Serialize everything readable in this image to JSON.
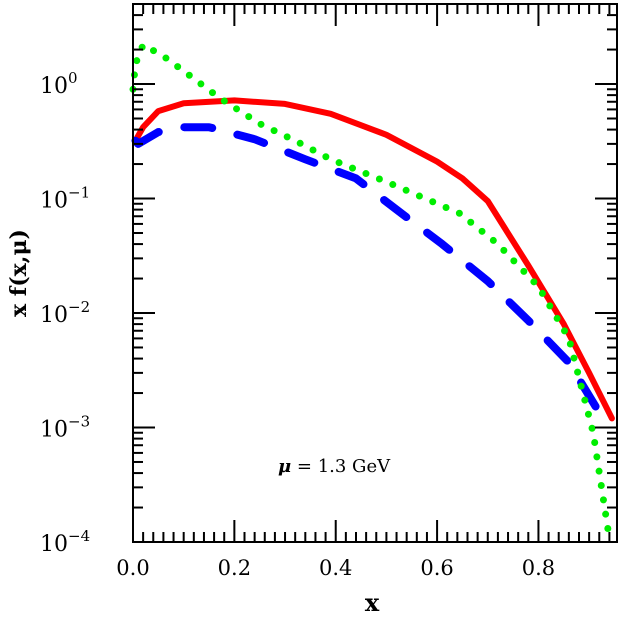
{
  "chart_data": {
    "type": "line",
    "title": "",
    "xlabel": "x",
    "ylabel": "x f(x,μ)",
    "xlim": [
      0,
      0.955
    ],
    "ylim": [
      0.0001,
      5
    ],
    "yscale": "log",
    "grid": false,
    "x_ticks": [
      "0.0",
      "0.2",
      "0.4",
      "0.6",
      "0.8"
    ],
    "x_tick_values": [
      0,
      0.2,
      0.4,
      0.6,
      0.8
    ],
    "y_ticks": [
      {
        "value": 1,
        "base": "10",
        "exp": "0"
      },
      {
        "value": 0.1,
        "base": "10",
        "exp": "−1"
      },
      {
        "value": 0.01,
        "base": "10",
        "exp": "−2"
      },
      {
        "value": 0.001,
        "base": "10",
        "exp": "−3"
      },
      {
        "value": 0.0001,
        "base": "10",
        "exp": "−4"
      }
    ],
    "annotation": {
      "prefix": "μ",
      "text": " = 1.3 GeV"
    },
    "series": [
      {
        "style": "solid",
        "color": "#ff0000",
        "x": [
          0.008,
          0.02,
          0.05,
          0.1,
          0.2,
          0.3,
          0.39,
          0.5,
          0.6,
          0.65,
          0.7,
          0.78,
          0.85,
          0.9,
          0.945
        ],
        "y": [
          0.34,
          0.42,
          0.58,
          0.68,
          0.72,
          0.67,
          0.55,
          0.36,
          0.21,
          0.15,
          0.095,
          0.026,
          0.008,
          0.003,
          0.0012
        ]
      },
      {
        "style": "dashed",
        "color": "#0000ff",
        "x": [
          0.005,
          0.01,
          0.05,
          0.1,
          0.15,
          0.24,
          0.34,
          0.44,
          0.52,
          0.61,
          0.7,
          0.78,
          0.86,
          0.935
        ],
        "y": [
          0.32,
          0.3,
          0.38,
          0.42,
          0.42,
          0.33,
          0.22,
          0.15,
          0.08,
          0.04,
          0.019,
          0.0086,
          0.0037,
          0.00105
        ]
      },
      {
        "style": "dotted",
        "color": "#00ee00",
        "x": [
          0.0,
          0.005,
          0.02,
          0.06,
          0.1,
          0.17,
          0.25,
          0.32,
          0.39,
          0.5,
          0.645,
          0.72,
          0.8,
          0.86,
          0.908,
          0.937
        ],
        "y": [
          0.9,
          1.5,
          2.2,
          1.75,
          1.3,
          0.76,
          0.45,
          0.32,
          0.22,
          0.14,
          0.074,
          0.04,
          0.017,
          0.006,
          0.0009,
          0.00013
        ]
      }
    ]
  }
}
